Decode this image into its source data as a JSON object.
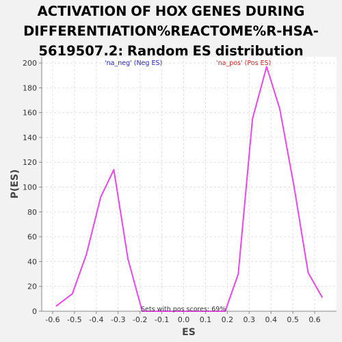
{
  "chart_data": {
    "type": "line",
    "title_lines": [
      "ACTIVATION OF HOX GENES DURING",
      "DIFFERENTIATION%REACTOME%R-HSA-",
      "5619507.2: Random ES distribution"
    ],
    "xlabel": "ES",
    "ylabel": "P(ES)",
    "xlim": [
      -0.65,
      0.7
    ],
    "ylim": [
      0,
      205
    ],
    "xticks": [
      -0.6,
      -0.5,
      -0.4,
      -0.3,
      -0.2,
      -0.1,
      0.0,
      0.1,
      0.2,
      0.3,
      0.4,
      0.5,
      0.6
    ],
    "xtick_labels": [
      "-0.6",
      "-0.5",
      "-0.4",
      "-0.3",
      "-0.2",
      "-0.1",
      "0.0",
      "0.1",
      "0.2",
      "0.3",
      "0.4",
      "0.5",
      "0.6"
    ],
    "yticks": [
      0,
      20,
      40,
      60,
      80,
      100,
      120,
      140,
      160,
      180,
      200
    ],
    "ytick_labels": [
      "0",
      "20",
      "40",
      "60",
      "80",
      "100",
      "120",
      "140",
      "160",
      "180",
      "200"
    ],
    "grid": true,
    "line_color": "#ee44ee",
    "series": [
      {
        "points": [
          [
            -0.585,
            4
          ],
          [
            -0.51,
            14
          ],
          [
            -0.445,
            46
          ],
          [
            -0.38,
            92
          ],
          [
            -0.32,
            114
          ],
          [
            -0.255,
            42
          ],
          [
            -0.19,
            0
          ],
          [
            0.19,
            0
          ],
          [
            0.25,
            30
          ],
          [
            0.315,
            155
          ],
          [
            0.38,
            197
          ],
          [
            0.44,
            163
          ],
          [
            0.505,
            101
          ],
          [
            0.57,
            31
          ],
          [
            0.635,
            11
          ]
        ]
      }
    ],
    "legend": [
      {
        "label": "'na_neg' (Neg ES)",
        "color": "#2222cc",
        "position": "top-left"
      },
      {
        "label": "'na_pos' (Pos ES)",
        "color": "#dd2222",
        "position": "top-right"
      }
    ],
    "annotation": "Sets with pos scores: 69%"
  }
}
